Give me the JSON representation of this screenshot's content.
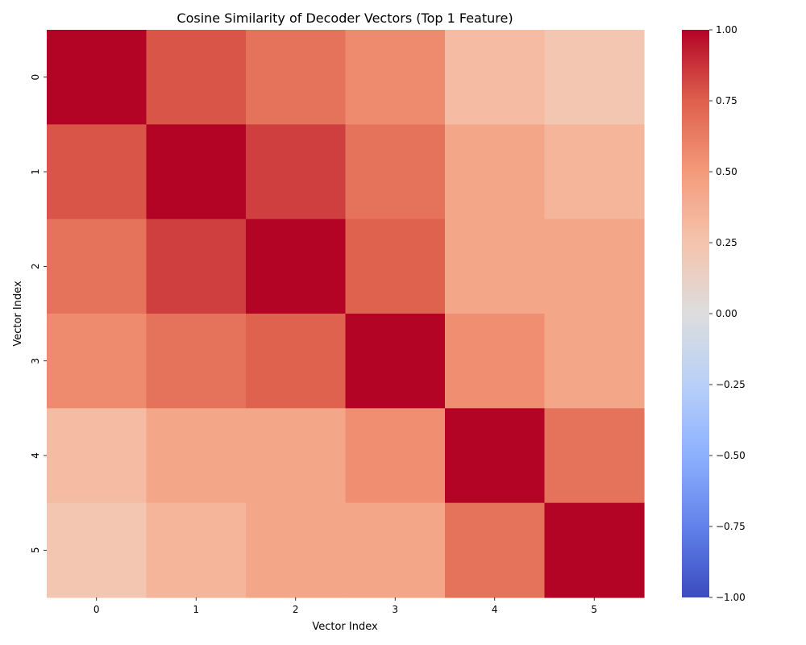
{
  "chart_data": {
    "type": "heatmap",
    "title": "Cosine Similarity of Decoder Vectors (Top 1 Feature)",
    "xlabel": "Vector Index",
    "ylabel": "Vector Index",
    "x_categories": [
      "0",
      "1",
      "2",
      "3",
      "4",
      "5"
    ],
    "y_categories": [
      "0",
      "1",
      "2",
      "3",
      "4",
      "5"
    ],
    "values": [
      [
        1.0,
        0.78,
        0.67,
        0.57,
        0.3,
        0.23
      ],
      [
        0.78,
        1.0,
        0.84,
        0.67,
        0.43,
        0.34
      ],
      [
        0.67,
        0.84,
        1.0,
        0.74,
        0.43,
        0.43
      ],
      [
        0.57,
        0.67,
        0.74,
        1.0,
        0.55,
        0.43
      ],
      [
        0.3,
        0.43,
        0.43,
        0.55,
        1.0,
        0.67
      ],
      [
        0.23,
        0.34,
        0.43,
        0.43,
        0.67,
        1.0
      ]
    ],
    "colormap": "coolwarm",
    "vmin": -1.0,
    "vmax": 1.0,
    "colorbar_ticks": [
      "1.00",
      "0.75",
      "0.50",
      "0.25",
      "0.00",
      "−0.25",
      "−0.50",
      "−0.75",
      "−1.00"
    ],
    "colorbar_tick_values": [
      1.0,
      0.75,
      0.5,
      0.25,
      0.0,
      -0.25,
      -0.5,
      -0.75,
      -1.0
    ]
  }
}
